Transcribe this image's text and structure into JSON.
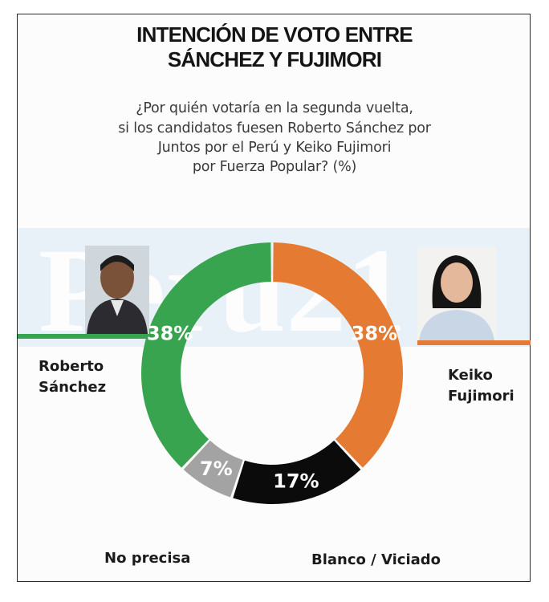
{
  "chart_data": {
    "type": "pie",
    "title_line1": "INTENCIÓN DE VOTO ENTRE",
    "title_line2": "SÁNCHEZ Y FUJIMORI",
    "subtitle_lines": [
      "¿Por quién votaría en la segunda vuelta,",
      "si los candidatos fuesen Roberto Sánchez por",
      "Juntos por el Perú y Keiko Fujimori",
      "por Fuerza Popular? (%)"
    ],
    "donut": true,
    "unit": "%",
    "watermark": "Perú21",
    "slices": [
      {
        "label_lines": [
          "Keiko",
          "Fujimori"
        ],
        "value": 38,
        "value_label": "38%",
        "color": "#e57a33"
      },
      {
        "label_lines": [
          "Blanco / Viciado"
        ],
        "value": 17,
        "value_label": "17%",
        "color": "#0b0b0b"
      },
      {
        "label_lines": [
          "No precisa"
        ],
        "value": 7,
        "value_label": "7%",
        "color": "#a3a3a3"
      },
      {
        "label_lines": [
          "Roberto",
          "Sánchez"
        ],
        "value": 38,
        "value_label": "38%",
        "color": "#39a44f"
      }
    ]
  },
  "colors": {
    "green": "#39a44f",
    "orange": "#e57a33",
    "band": "#e9f1f8"
  }
}
